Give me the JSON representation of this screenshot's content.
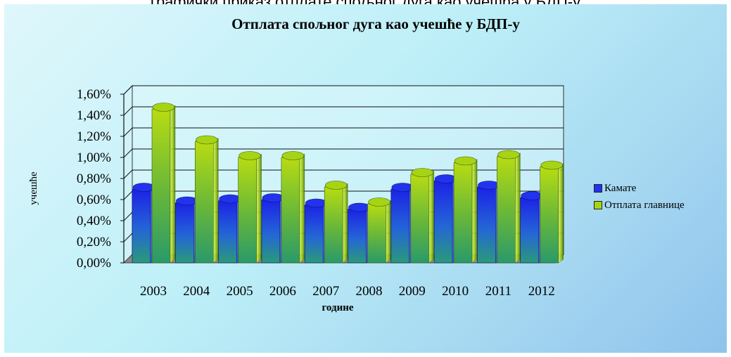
{
  "page_caption": "графички приказ отплате спољног дуга као учешћа у БДП-у",
  "chart_data": {
    "type": "bar",
    "title": "Отплата спољног дуга као учешће у БДП-у",
    "xlabel": "године",
    "ylabel": "учешће",
    "categories": [
      "2003",
      "2004",
      "2005",
      "2006",
      "2007",
      "2008",
      "2009",
      "2010",
      "2011",
      "2012"
    ],
    "y_ticks": [
      "0,00%",
      "0,20%",
      "0,40%",
      "0,60%",
      "0,80%",
      "1,00%",
      "1,20%",
      "1,40%",
      "1,60%"
    ],
    "ylim": [
      0,
      1.6
    ],
    "grid": true,
    "legend_position": "right",
    "series": [
      {
        "name": "Камате",
        "color": "#2233ee",
        "values": [
          0.7,
          0.57,
          0.59,
          0.6,
          0.55,
          0.51,
          0.7,
          0.78,
          0.72,
          0.62
        ]
      },
      {
        "name": "Отплата главнице",
        "color": "#a6d414",
        "values": [
          1.46,
          1.15,
          1.0,
          1.0,
          0.72,
          0.56,
          0.84,
          0.95,
          1.01,
          0.91
        ]
      }
    ]
  }
}
